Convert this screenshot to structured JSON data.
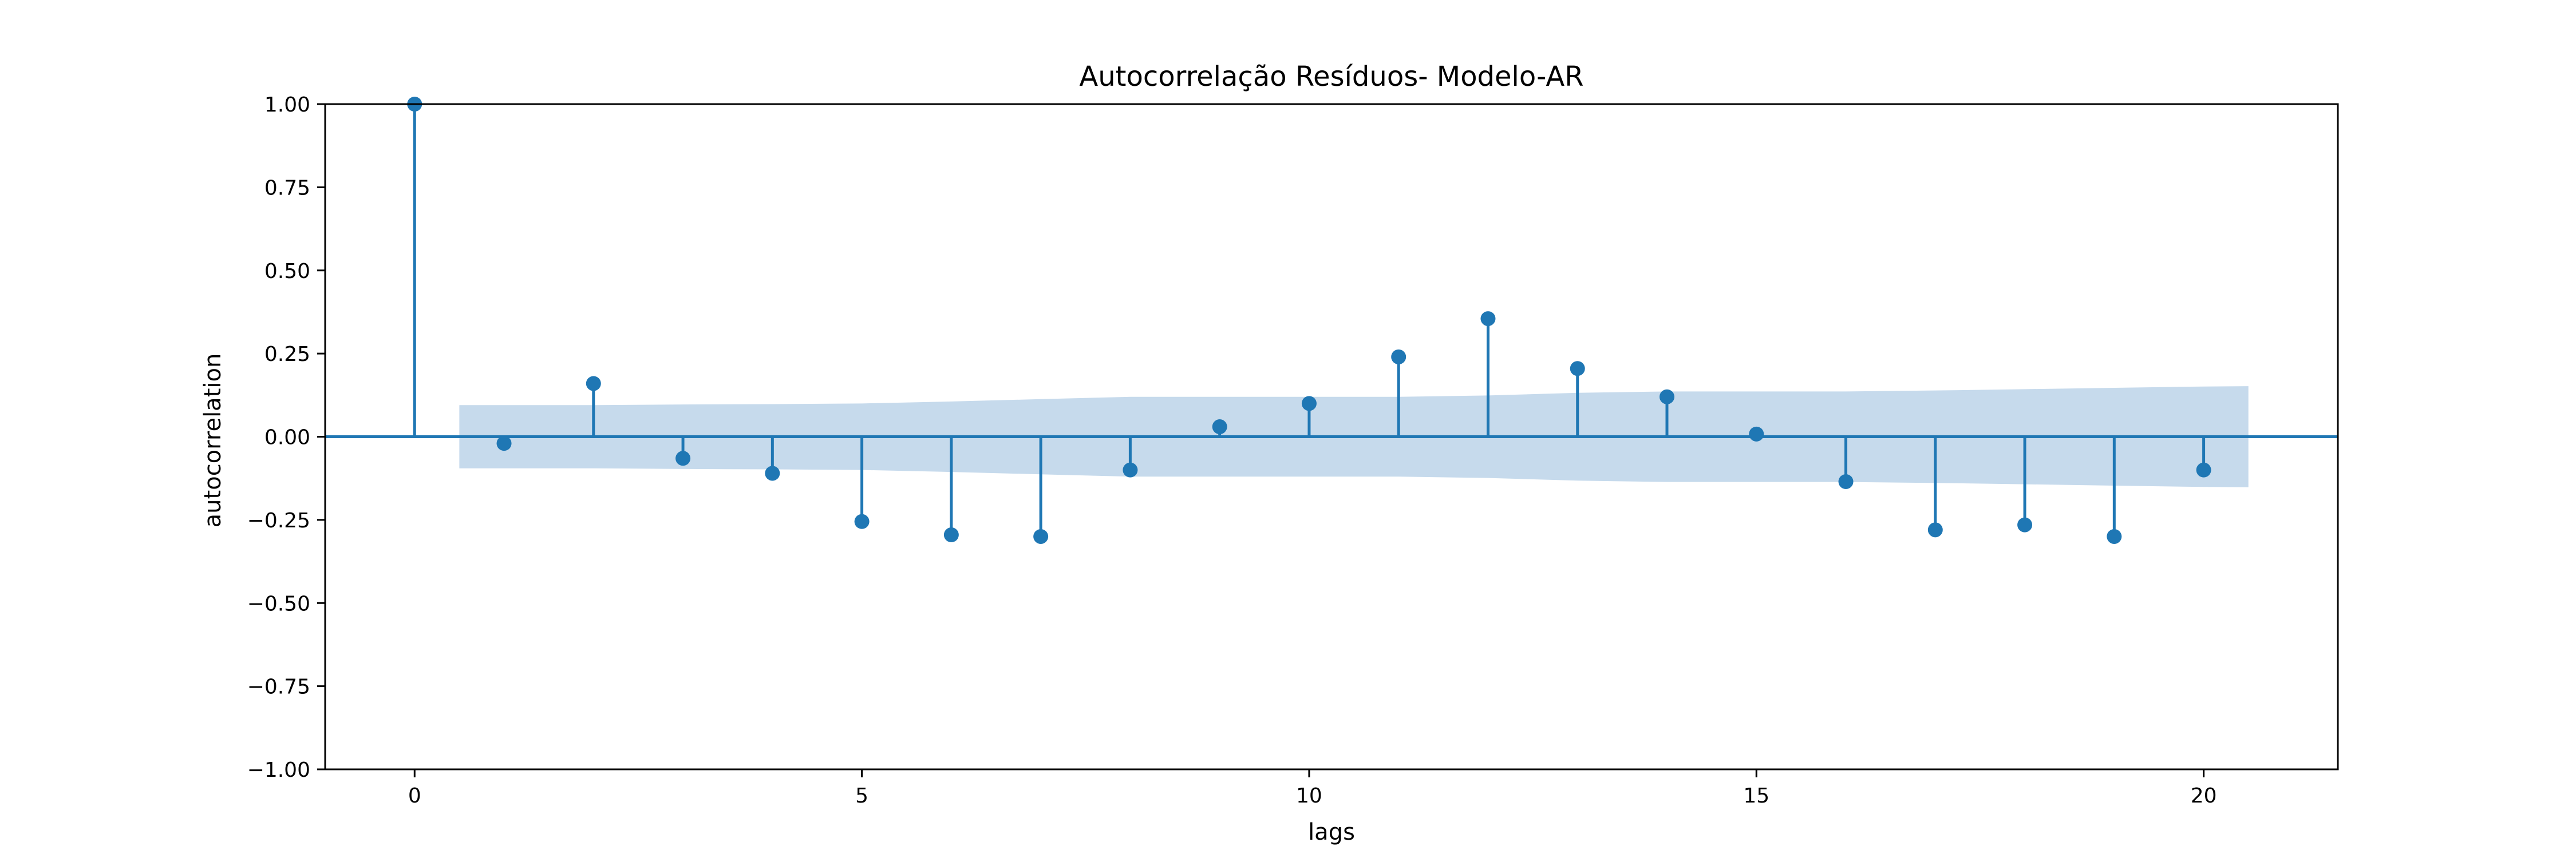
{
  "chart_data": {
    "type": "stem",
    "title": "Autocorrelação Resíduos- Modelo-AR",
    "xlabel": "lags",
    "ylabel": "autocorrelation",
    "xlim": [
      -1,
      21.5
    ],
    "ylim": [
      -1.0,
      1.0
    ],
    "xticks": [
      0,
      5,
      10,
      15,
      20
    ],
    "yticks": [
      1.0,
      0.75,
      0.5,
      0.25,
      0.0,
      -0.25,
      -0.5,
      -0.75,
      -1.0
    ],
    "ytick_labels": [
      "1.00",
      "0.75",
      "0.50",
      "0.25",
      "0.00",
      "−0.25",
      "−0.50",
      "−0.75",
      "−1.00"
    ],
    "grid": false,
    "colors": {
      "stem": "#1f77b4",
      "band": "#aecbe4"
    },
    "lags": [
      0,
      1,
      2,
      3,
      4,
      5,
      6,
      7,
      8,
      9,
      10,
      11,
      12,
      13,
      14,
      15,
      16,
      17,
      18,
      19,
      20
    ],
    "acf": [
      1.0,
      -0.02,
      0.16,
      -0.065,
      -0.11,
      -0.255,
      -0.295,
      -0.3,
      -0.1,
      0.03,
      0.1,
      0.24,
      0.355,
      0.205,
      0.12,
      0.008,
      -0.135,
      -0.28,
      -0.265,
      -0.3,
      -0.1
    ],
    "confidence_band": {
      "x": [
        0.5,
        1,
        2,
        3,
        4,
        5,
        6,
        7,
        8,
        9,
        10,
        11,
        12,
        13,
        14,
        15,
        16,
        17,
        18,
        19,
        20,
        20.5
      ],
      "upper": [
        0.095,
        0.095,
        0.095,
        0.097,
        0.098,
        0.1,
        0.106,
        0.113,
        0.12,
        0.12,
        0.12,
        0.12,
        0.124,
        0.132,
        0.136,
        0.136,
        0.136,
        0.139,
        0.143,
        0.147,
        0.151,
        0.152
      ],
      "lower": [
        -0.095,
        -0.095,
        -0.095,
        -0.097,
        -0.098,
        -0.1,
        -0.106,
        -0.113,
        -0.12,
        -0.12,
        -0.12,
        -0.12,
        -0.124,
        -0.132,
        -0.136,
        -0.136,
        -0.136,
        -0.139,
        -0.143,
        -0.147,
        -0.151,
        -0.152
      ]
    }
  }
}
